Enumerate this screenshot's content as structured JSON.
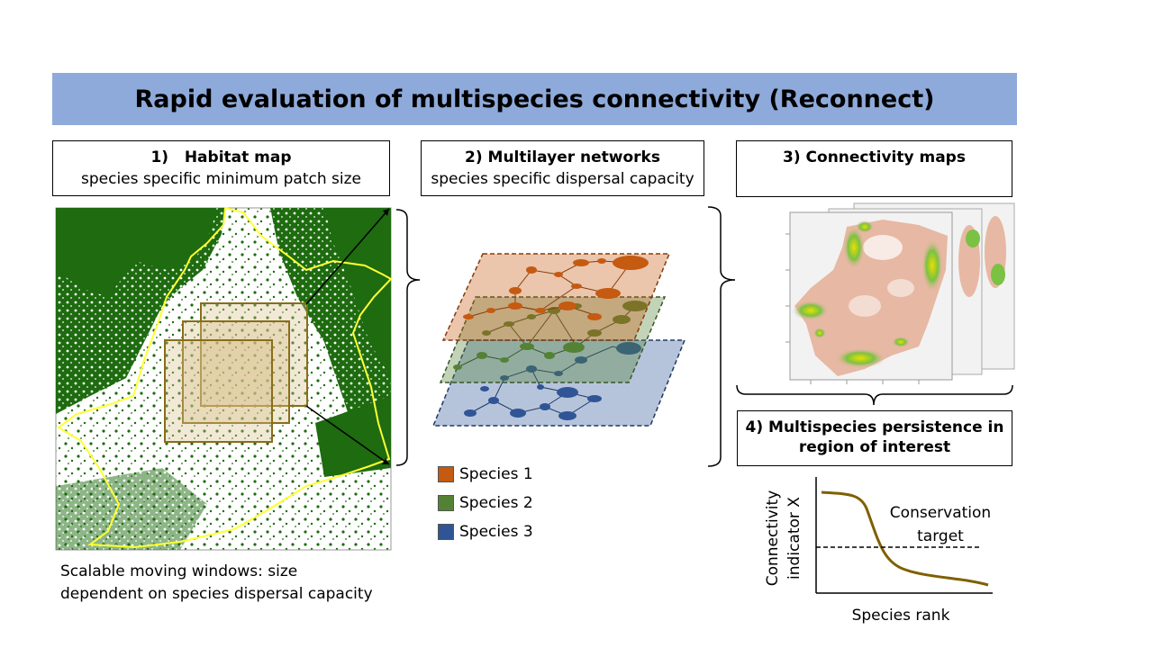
{
  "title": "Rapid evaluation of multispecies connectivity (Reconnect)",
  "steps": {
    "habitat": {
      "title": "1)   Habitat map",
      "subtitle": "species specific minimum patch size"
    },
    "networks": {
      "title": "2) Multilayer networks",
      "subtitle": "species specific dispersal capacity"
    },
    "connectivity": {
      "title": "3) Connectivity maps"
    },
    "persistence": {
      "title_line1": "4) Multispecies persistence in",
      "title_line2": "region of interest"
    }
  },
  "habitat_caption": {
    "line1": "Scalable moving windows: size",
    "line2": "dependent on species dispersal capacity"
  },
  "legend": [
    {
      "label": "Species 1",
      "color": "#c55a11"
    },
    {
      "label": "Species 2",
      "color": "#548235"
    },
    {
      "label": "Species 3",
      "color": "#2f5597"
    }
  ],
  "plot": {
    "ylabel_line1": "Connectivity",
    "ylabel_line2": "indicator X",
    "xlabel": "Species rank",
    "target_line1": "Conservation",
    "target_line2": "target",
    "curve_color": "#7f6000"
  },
  "colors": {
    "habitat_green": "#1e6b10",
    "boundary": "#ffff33",
    "window": "#8a6d1a"
  }
}
